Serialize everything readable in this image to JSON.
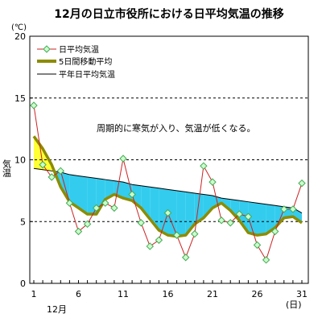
{
  "chart_data": {
    "type": "line",
    "title": "12月の日立市役所における日平均気温の推移",
    "y_unit": "(℃)",
    "ylabel": "気温",
    "x_unit": "(日)",
    "month_label": "12月",
    "annotation": "周期的に寒気が入り、気温が低くなる。",
    "ylim": [
      0,
      20
    ],
    "xlim": [
      1,
      31
    ],
    "grid": "dashed horizontal at 5, 10, 15",
    "legend_placement": "top-left inside",
    "x_ticks": [
      1,
      6,
      11,
      16,
      21,
      26,
      31
    ],
    "y_ticks": [
      0,
      5,
      10,
      15,
      20
    ],
    "fill_colors": {
      "above_normal": "#ffff33",
      "below_normal": "#33ccee"
    },
    "series": [
      {
        "name": "日平均気温",
        "color": "#cc2222",
        "marker_fill": "#ccffcc",
        "marker_stroke": "#44aa55",
        "x": [
          1,
          2,
          3,
          4,
          5,
          6,
          7,
          8,
          9,
          10,
          11,
          12,
          13,
          14,
          15,
          16,
          17,
          18,
          19,
          20,
          21,
          22,
          23,
          24,
          25,
          26,
          27,
          28,
          29,
          30,
          31
        ],
        "values": [
          14.4,
          9.6,
          8.6,
          9.1,
          6.5,
          4.2,
          4.8,
          6.1,
          6.5,
          6.1,
          10.1,
          7.2,
          4.9,
          3.0,
          3.5,
          5.7,
          3.9,
          2.1,
          4.0,
          9.5,
          8.2,
          5.1,
          4.9,
          5.6,
          5.4,
          3.1,
          1.9,
          4.2,
          6.0,
          6.0,
          8.1
        ]
      },
      {
        "name": "5日間移動平均",
        "color": "#8c8c00",
        "x": [
          1,
          2,
          3,
          4,
          5,
          6,
          7,
          8,
          9,
          10,
          11,
          12,
          13,
          14,
          15,
          16,
          17,
          18,
          19,
          20,
          21,
          22,
          23,
          24,
          25,
          26,
          27,
          28,
          29,
          30,
          31
        ],
        "values": [
          11.9,
          10.9,
          9.6,
          7.8,
          6.6,
          6.1,
          5.6,
          5.6,
          6.8,
          7.2,
          6.9,
          6.7,
          6.1,
          5.2,
          4.3,
          3.9,
          3.8,
          3.9,
          4.8,
          5.3,
          6.1,
          6.5,
          5.9,
          5.1,
          4.1,
          3.9,
          4.0,
          4.5,
          5.3,
          5.4,
          4.9
        ]
      },
      {
        "name": "平年日平均気温",
        "color": "#000000",
        "x": [
          1,
          2,
          3,
          4,
          5,
          6,
          7,
          8,
          9,
          10,
          11,
          12,
          13,
          14,
          15,
          16,
          17,
          18,
          19,
          20,
          21,
          22,
          23,
          24,
          25,
          26,
          27,
          28,
          29,
          30,
          31
        ],
        "values": [
          9.3,
          9.2,
          9.1,
          9.0,
          8.8,
          8.7,
          8.6,
          8.5,
          8.4,
          8.3,
          8.2,
          8.0,
          7.9,
          7.8,
          7.7,
          7.6,
          7.5,
          7.4,
          7.3,
          7.2,
          7.1,
          6.9,
          6.8,
          6.7,
          6.6,
          6.5,
          6.4,
          6.3,
          6.2,
          6.1,
          5.7
        ]
      }
    ]
  }
}
